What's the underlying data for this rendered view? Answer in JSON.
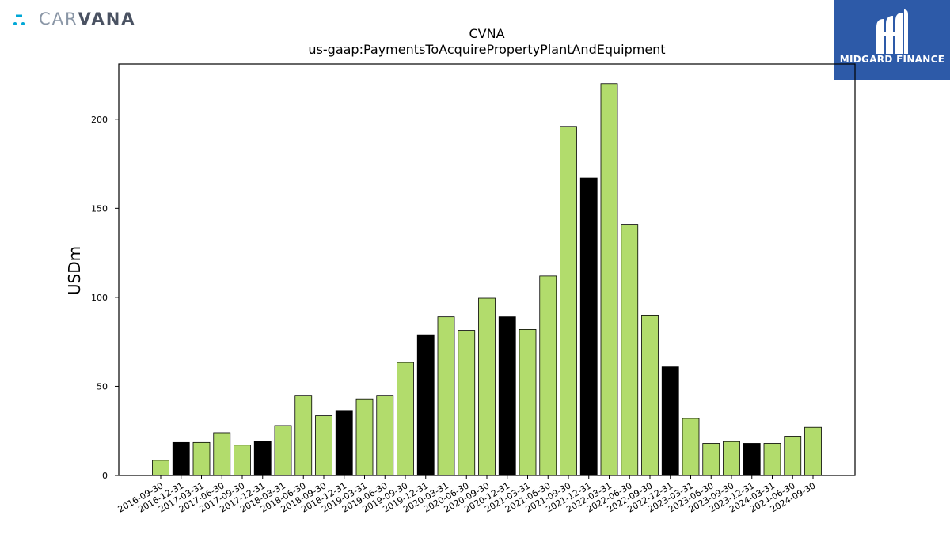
{
  "brand": {
    "left_logo": {
      "name": "CARVANA",
      "part_a": "CAR",
      "part_b": "VANA",
      "badge_color": "#00a7d6"
    },
    "right_logo": {
      "name": "MIDGARD FINANCE",
      "background": "#2d5aa8"
    }
  },
  "chart_data": {
    "type": "bar",
    "title": "CVNA",
    "subtitle": "us-gaap:PaymentsToAcquirePropertyPlantAndEquipment",
    "xlabel": "",
    "ylabel": "USDm",
    "ylim": [
      0,
      231
    ],
    "yticks": [
      0,
      50,
      100,
      150,
      200
    ],
    "grid": false,
    "legend": "none",
    "colors": {
      "quarter": "#b2dc6c",
      "year_end": "#000000",
      "edge": "#000000"
    },
    "categories": [
      "2016-09-30",
      "2016-12-31",
      "2017-03-31",
      "2017-06-30",
      "2017-09-30",
      "2017-12-31",
      "2018-03-31",
      "2018-06-30",
      "2018-09-30",
      "2018-12-31",
      "2019-03-31",
      "2019-06-30",
      "2019-09-30",
      "2019-12-31",
      "2020-03-31",
      "2020-06-30",
      "2020-09-30",
      "2020-12-31",
      "2021-03-31",
      "2021-06-30",
      "2021-09-30",
      "2021-12-31",
      "2022-03-31",
      "2022-06-30",
      "2022-09-30",
      "2022-12-31",
      "2023-03-31",
      "2023-06-30",
      "2023-09-30",
      "2023-12-31",
      "2024-03-31",
      "2024-06-30",
      "2024-09-30"
    ],
    "values": [
      8.5,
      18.5,
      18.5,
      24,
      17,
      19,
      28,
      45,
      33.5,
      36.5,
      43,
      45,
      63.5,
      79,
      89,
      81.5,
      99.5,
      89,
      82,
      112,
      196,
      167,
      220,
      141,
      90,
      61,
      32,
      18,
      19,
      18,
      18,
      22,
      27
    ]
  }
}
